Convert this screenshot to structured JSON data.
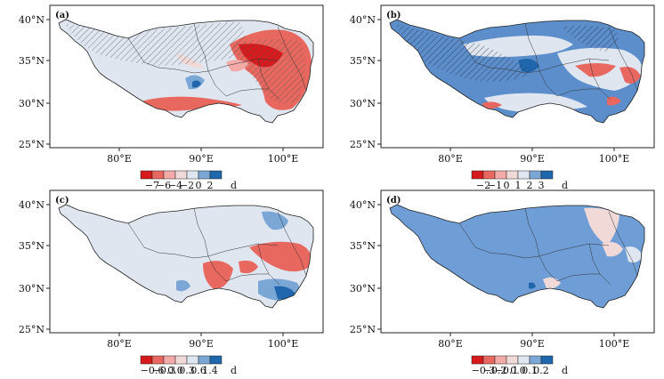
{
  "map": {
    "x_ticks": [
      "80°E",
      "90°E",
      "100°E"
    ],
    "y_ticks": [
      "40°N",
      "35°N",
      "30°N",
      "25°N"
    ]
  },
  "panels": [
    {
      "label": "(a)",
      "legend_values": [
        "−7",
        "−6",
        "−4",
        "−2",
        "0",
        "2"
      ],
      "legend_unit": "d",
      "legend_colors": [
        "#d7191c",
        "#e8675f",
        "#f4aaa7",
        "#f1d9d8",
        "#dfe6f0",
        "#7ba7d6",
        "#2066ac"
      ],
      "base_color": "#dfe6f0"
    },
    {
      "label": "(b)",
      "legend_values": [
        "−2",
        "−1",
        "0",
        "1",
        "2",
        "3"
      ],
      "legend_unit": "d",
      "legend_colors": [
        "#d7191c",
        "#e8675f",
        "#f4aaa7",
        "#f1d9d8",
        "#dfe6f0",
        "#7ba7d6",
        "#2066ac"
      ],
      "base_color": "#5b8ecb"
    },
    {
      "label": "(c)",
      "legend_values": [
        "−0.6",
        "−0.3",
        "0.0",
        "0.3",
        "0.6",
        "1.4"
      ],
      "legend_unit": "d",
      "legend_colors": [
        "#d7191c",
        "#e8675f",
        "#f4aaa7",
        "#f1d9d8",
        "#dfe6f0",
        "#7ba7d6",
        "#2066ac"
      ],
      "base_color": "#dfe6f0"
    },
    {
      "label": "(d)",
      "legend_values": [
        "−0.3",
        "−0.2",
        "−0.1",
        "0.0",
        "0.1",
        "0.2"
      ],
      "legend_unit": "d",
      "legend_colors": [
        "#d7191c",
        "#e8675f",
        "#f4aaa7",
        "#f1d9d8",
        "#dfe6f0",
        "#7ba7d6",
        "#2066ac"
      ],
      "base_color": "#6f9ed6"
    }
  ]
}
